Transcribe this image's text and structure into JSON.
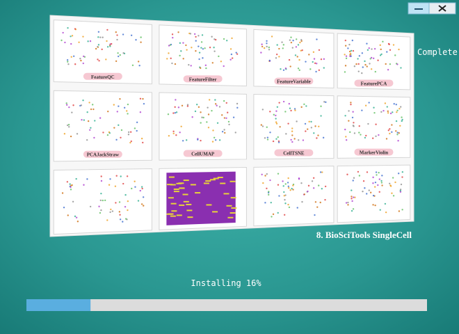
{
  "status": "Complete",
  "slide": {
    "caption": "8. BioSciTools SingleCell",
    "panels": [
      "FeatureQC",
      "FeatureFilter",
      "FeatureVariable",
      "FeaturePCA",
      "PCAJackStraw",
      "CellUMAP",
      "CellTSNE",
      "MarkerViolin"
    ]
  },
  "progress": {
    "label": "Installing 16%",
    "value": 16
  }
}
